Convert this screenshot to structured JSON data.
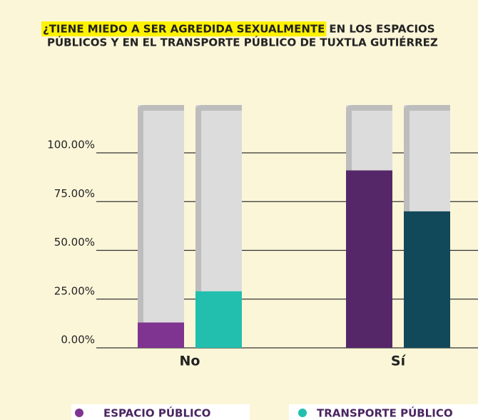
{
  "chart_data": {
    "type": "bar",
    "title": [
      "¿TIENE MIEDO A SER AGREDIDA SEXUALMENTE",
      "EN LOS ESPACIOS",
      "PÚBLICOS Y EN EL TRANSPORTE PÚBLICO DE TUXTLA GUTIÉRREZ"
    ],
    "categories": [
      "No",
      "Sí"
    ],
    "series": [
      {
        "name": "ESPACIO PÚBLICO",
        "color": "#7f3491",
        "bar_colors": [
          "#7f3491",
          "#552768"
        ],
        "values": [
          13,
          91
        ]
      },
      {
        "name": "TRANSPORTE PÚBLICO",
        "color": "#22bfae",
        "bar_colors": [
          "#22bfae",
          "#12495a"
        ],
        "values": [
          29,
          70
        ]
      }
    ],
    "ylim": [
      0,
      100
    ],
    "yticks": [
      {
        "value": 0,
        "label": "0.00%"
      },
      {
        "value": 25,
        "label": "25.00%"
      },
      {
        "value": 50,
        "label": "50.00%"
      },
      {
        "value": 75,
        "label": "75.00%"
      },
      {
        "value": 100,
        "label": "100.00%"
      }
    ],
    "grid": true
  }
}
